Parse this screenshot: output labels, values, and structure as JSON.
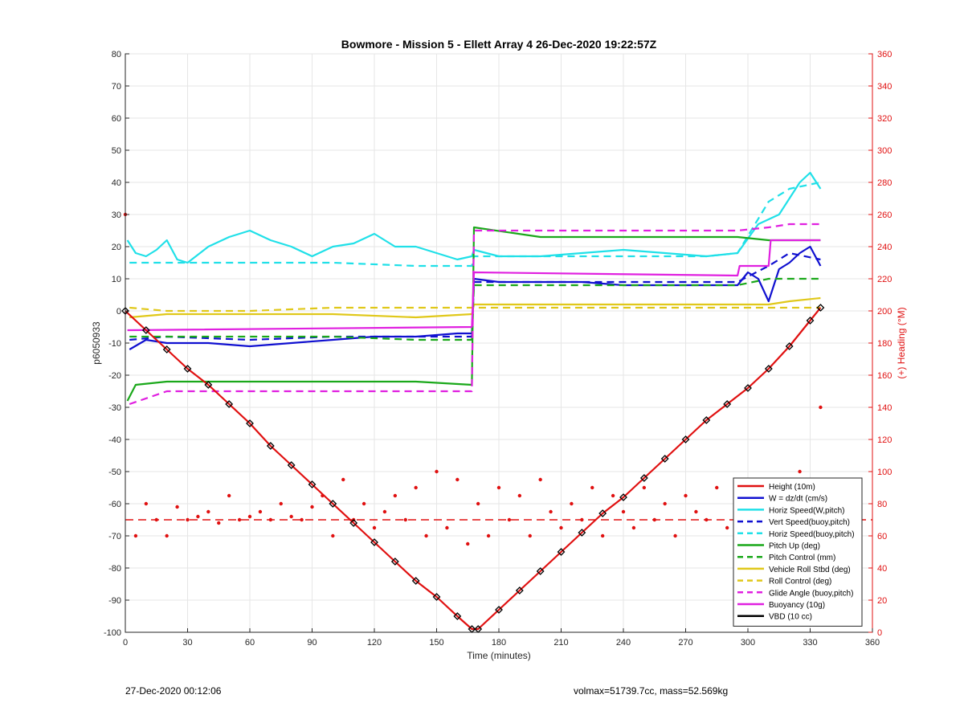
{
  "chart_data": {
    "type": "line",
    "title": "Bowmore - Mission 5 - Ellett Array 4 26-Dec-2020 19:22:57Z",
    "xlabel": "Time (minutes)",
    "ylabel": "p6050933",
    "ylabel_right": "(+) Heading (°M)",
    "xlim": [
      0,
      360
    ],
    "ylim": [
      -100,
      80
    ],
    "ylim_right": [
      0,
      360
    ],
    "xticks": [
      0,
      30,
      60,
      90,
      120,
      150,
      180,
      210,
      240,
      270,
      300,
      330,
      360
    ],
    "yticks": [
      -100,
      -90,
      -80,
      -70,
      -60,
      -50,
      -40,
      -30,
      -20,
      -10,
      0,
      10,
      20,
      30,
      40,
      50,
      60,
      70,
      80
    ],
    "yticks_right": [
      0,
      20,
      40,
      60,
      80,
      100,
      120,
      140,
      160,
      180,
      200,
      220,
      240,
      260,
      280,
      300,
      320,
      340,
      360
    ],
    "grid": true,
    "legend_position": "bottom-right",
    "series": [
      {
        "name": "Height (10m)",
        "color": "#e01010",
        "style": "solid",
        "x": [
          0,
          10,
          20,
          30,
          40,
          50,
          60,
          70,
          80,
          90,
          100,
          110,
          120,
          130,
          140,
          150,
          160,
          167,
          170,
          180,
          190,
          200,
          210,
          220,
          230,
          240,
          250,
          260,
          270,
          280,
          290,
          300,
          310,
          320,
          330,
          335
        ],
        "y": [
          0,
          -6,
          -12,
          -18,
          -23,
          -29,
          -35,
          -42,
          -48,
          -54,
          -60,
          -66,
          -72,
          -78,
          -84,
          -89,
          -95,
          -99,
          -99,
          -93,
          -87,
          -81,
          -75,
          -69,
          -63,
          -58,
          -52,
          -46,
          -40,
          -34,
          -29,
          -24,
          -18,
          -11,
          -3,
          1
        ]
      },
      {
        "name": "W = dz/dt (cm/s)",
        "color": "#1010d0",
        "style": "solid",
        "x": [
          2,
          10,
          20,
          40,
          60,
          80,
          100,
          120,
          140,
          160,
          167,
          168,
          180,
          200,
          220,
          240,
          260,
          280,
          295,
          300,
          305,
          310,
          315,
          320,
          325,
          330,
          335
        ],
        "y": [
          -12,
          -9,
          -10,
          -10,
          -11,
          -10,
          -9,
          -8,
          -8,
          -7,
          -7,
          10,
          9,
          9,
          9,
          8,
          8,
          8,
          8,
          12,
          10,
          3,
          13,
          15,
          18,
          20,
          14
        ]
      },
      {
        "name": "Horiz Speed(W,pitch)",
        "color": "#20e0e8",
        "style": "solid",
        "x": [
          1,
          5,
          10,
          15,
          20,
          25,
          30,
          40,
          50,
          60,
          70,
          80,
          90,
          100,
          110,
          120,
          130,
          140,
          150,
          160,
          167,
          168,
          180,
          200,
          220,
          240,
          260,
          280,
          295,
          305,
          315,
          320,
          325,
          330,
          335
        ],
        "y": [
          22,
          18,
          17,
          19,
          22,
          16,
          15,
          20,
          23,
          25,
          22,
          20,
          17,
          20,
          21,
          24,
          20,
          20,
          18,
          16,
          17,
          19,
          17,
          17,
          18,
          19,
          18,
          17,
          18,
          27,
          30,
          35,
          40,
          43,
          38
        ]
      },
      {
        "name": "Vert Speed(buoy,pitch)",
        "color": "#1010d0",
        "style": "dashed",
        "x": [
          2,
          20,
          60,
          100,
          140,
          167,
          168,
          200,
          240,
          280,
          295,
          310,
          320,
          335
        ],
        "y": [
          -9,
          -8,
          -9,
          -8,
          -8,
          -8,
          9,
          9,
          9,
          9,
          9,
          14,
          18,
          16
        ]
      },
      {
        "name": "Horiz Speed(buoy,pitch)",
        "color": "#20e0e8",
        "style": "dashed",
        "x": [
          2,
          20,
          60,
          100,
          140,
          167,
          168,
          200,
          240,
          280,
          295,
          310,
          320,
          335
        ],
        "y": [
          15,
          15,
          15,
          15,
          14,
          14,
          17,
          17,
          17,
          17,
          18,
          34,
          38,
          40
        ]
      },
      {
        "name": "Pitch Up (deg)",
        "color": "#1aa81a",
        "style": "solid",
        "x": [
          1,
          5,
          20,
          60,
          100,
          140,
          167,
          168,
          200,
          240,
          280,
          295,
          310,
          320,
          335
        ],
        "y": [
          -28,
          -23,
          -22,
          -22,
          -22,
          -22,
          -23,
          26,
          23,
          23,
          23,
          23,
          22,
          22,
          22
        ]
      },
      {
        "name": "Pitch Control (mm)",
        "color": "#1aa81a",
        "style": "dashed",
        "x": [
          2,
          20,
          60,
          100,
          140,
          167,
          168,
          200,
          240,
          280,
          295,
          310,
          320,
          335
        ],
        "y": [
          -8,
          -8,
          -8,
          -8,
          -9,
          -9,
          8,
          8,
          8,
          8,
          8,
          10,
          10,
          10
        ]
      },
      {
        "name": "Vehicle Roll Stbd (deg)",
        "color": "#e0c81a",
        "style": "solid",
        "x": [
          2,
          20,
          60,
          100,
          140,
          167,
          168,
          200,
          240,
          280,
          295,
          310,
          320,
          335
        ],
        "y": [
          -2,
          -1,
          -1,
          -1,
          -2,
          -1,
          2,
          2,
          2,
          2,
          2,
          2,
          3,
          4
        ]
      },
      {
        "name": "Roll Control (deg)",
        "color": "#e0c81a",
        "style": "dashed",
        "x": [
          2,
          20,
          60,
          100,
          140,
          167,
          168,
          200,
          240,
          280,
          295,
          310,
          320,
          335
        ],
        "y": [
          1,
          0,
          0,
          1,
          1,
          1,
          1,
          1,
          1,
          1,
          1,
          1,
          1,
          1
        ]
      },
      {
        "name": "Glide Angle (buoy,pitch)",
        "color": "#e020e0",
        "style": "dashed",
        "x": [
          2,
          20,
          60,
          100,
          140,
          167,
          168,
          200,
          240,
          280,
          295,
          310,
          320,
          335
        ],
        "y": [
          -29,
          -25,
          -25,
          -25,
          -25,
          -25,
          25,
          25,
          25,
          25,
          25,
          26,
          27,
          27
        ]
      },
      {
        "name": "Buoyancy (10g)",
        "color": "#e020e0",
        "style": "solid",
        "x": [
          1,
          2,
          167,
          168,
          295,
          296,
          310,
          311,
          335
        ],
        "y": [
          -6,
          -6,
          -5,
          12,
          11,
          14,
          14,
          22,
          22
        ]
      },
      {
        "name": "VBD (10 cc)",
        "color": "#000000",
        "style": "solid",
        "x": [
          1,
          2,
          167,
          168,
          295,
          296,
          310,
          311,
          335
        ],
        "y": [
          -7,
          -7,
          -7,
          10,
          10,
          13,
          13,
          22,
          22
        ]
      }
    ],
    "heading": {
      "color": "#e01010",
      "axis": "right",
      "x": [
        0,
        5,
        10,
        15,
        20,
        25,
        30,
        35,
        40,
        45,
        50,
        55,
        60,
        65,
        70,
        75,
        80,
        85,
        90,
        95,
        100,
        105,
        110,
        115,
        120,
        125,
        130,
        135,
        140,
        145,
        150,
        155,
        160,
        165,
        170,
        175,
        180,
        185,
        190,
        195,
        200,
        205,
        210,
        215,
        220,
        225,
        230,
        235,
        240,
        245,
        250,
        255,
        260,
        265,
        270,
        275,
        280,
        285,
        290,
        295,
        300,
        305,
        310,
        315,
        320,
        325,
        330,
        335
      ],
      "y": [
        260,
        60,
        80,
        70,
        60,
        78,
        70,
        72,
        75,
        68,
        85,
        70,
        72,
        75,
        70,
        80,
        72,
        70,
        78,
        85,
        60,
        95,
        70,
        80,
        65,
        75,
        85,
        70,
        90,
        60,
        100,
        65,
        95,
        55,
        80,
        60,
        90,
        70,
        85,
        60,
        95,
        75,
        65,
        80,
        70,
        90,
        60,
        85,
        75,
        65,
        90,
        70,
        80,
        60,
        85,
        75,
        70,
        90,
        65,
        80,
        70,
        95,
        60,
        85,
        75,
        100,
        60,
        140
      ],
      "reference_line": 70
    }
  },
  "footer": {
    "timestamp": "27-Dec-2020 00:12:06",
    "info": "volmax=51739.7cc, mass=52.569kg"
  }
}
